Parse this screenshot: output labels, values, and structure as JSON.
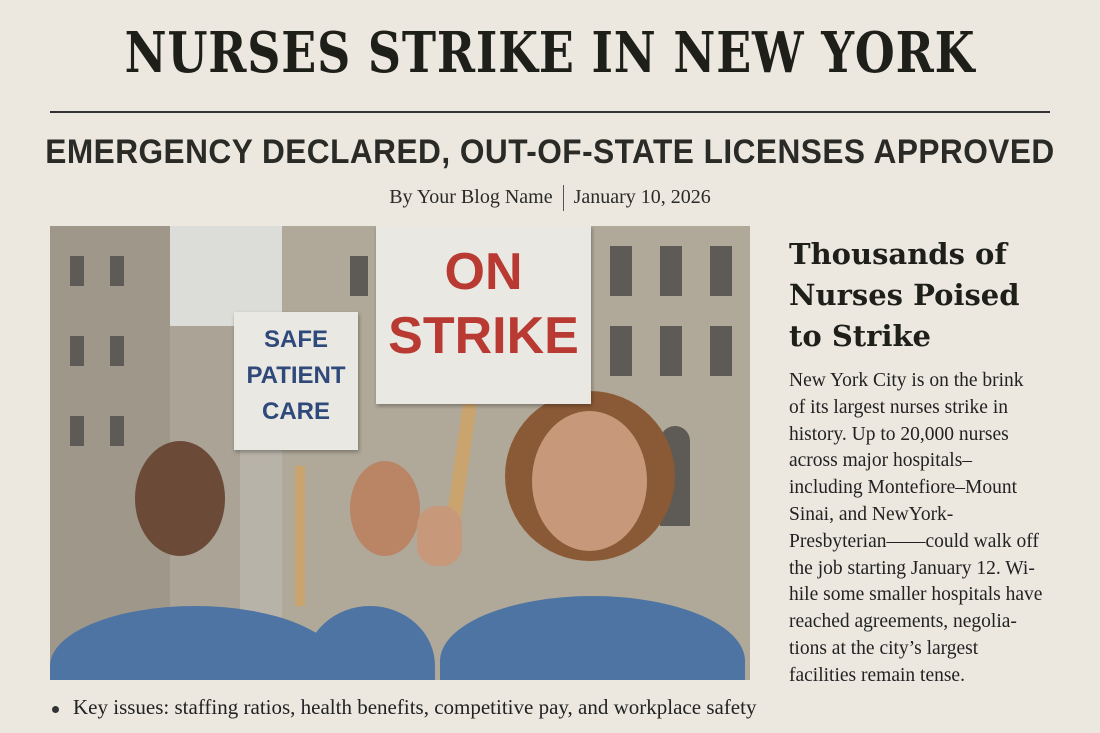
{
  "headline": "NURSES STRIKE IN NEW YORK",
  "subheadline": "EMERGENCY DECLARED, OUT-OF-STATE LICENSES APPROVED",
  "byline": {
    "author": "By Your Blog Name",
    "date": "January 10, 2026"
  },
  "photo": {
    "sign_left": [
      "SAFE",
      "PATIENT",
      "CARE"
    ],
    "sign_right": [
      "ON",
      "STRIKE"
    ],
    "colors": {
      "sign_left_text": "#2f4a7a",
      "sign_right_text": "#b83a32",
      "scrubs": "#4d74a3"
    }
  },
  "article": {
    "title_lines": [
      "Thousands of",
      "Nurses Poised",
      "to Strike"
    ],
    "body_lines": [
      "New York City is on the brink",
      "of its largest nurses strike in",
      "history. Up to 20,000 nurses",
      "across major hospitals–",
      "including Montefiore–Mount",
      "Sinai, and NewYork-",
      "Presbyterian——could walk off",
      "the job starting January 12. Wi-",
      "hile some smaller hospitals have",
      "reached agreements, negolia-",
      "tions at the city’s largest",
      "facilities remain tense."
    ]
  },
  "key_issues": "Key issues: staffing ratios, health benefits, competitive pay, and workplace safety"
}
